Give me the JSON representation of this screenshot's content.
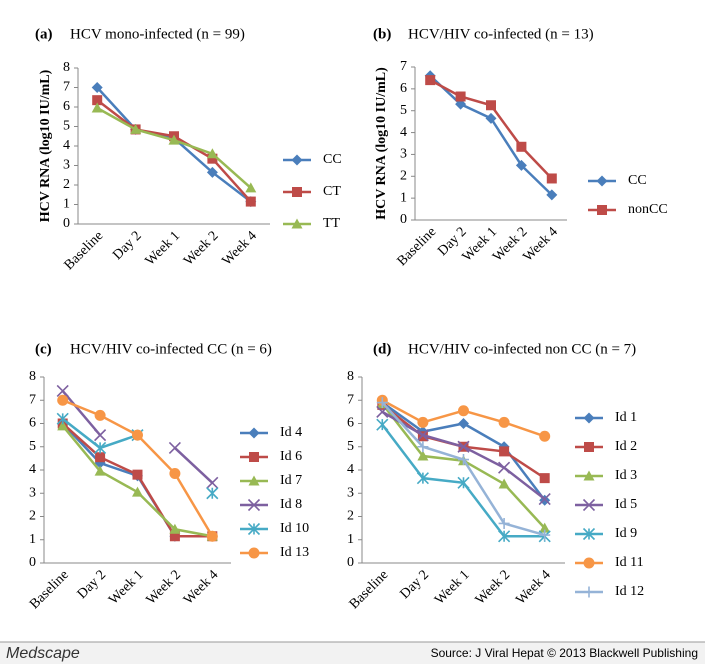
{
  "chart_data": [
    {
      "type": "line",
      "label": "(a)",
      "title": "HCV mono-infected (n = 99)",
      "ylabel": "HCV RNA (log10 IU/mL)",
      "categories": [
        "Baseline",
        "Day 2",
        "Week 1",
        "Week 2",
        "Week 4"
      ],
      "ylim": [
        0,
        8
      ],
      "yticks": [
        0,
        1,
        2,
        3,
        4,
        5,
        6,
        7,
        8
      ],
      "series": [
        {
          "name": "CC",
          "color": "#4a7ebb",
          "marker": "diamond",
          "values": [
            7.0,
            4.85,
            4.4,
            2.65,
            1.15
          ]
        },
        {
          "name": "CT",
          "color": "#be4b48",
          "marker": "square",
          "values": [
            6.35,
            4.85,
            4.5,
            3.35,
            1.15
          ]
        },
        {
          "name": "TT",
          "color": "#98b954",
          "marker": "triangle",
          "values": [
            5.95,
            4.85,
            4.3,
            3.6,
            1.85
          ]
        }
      ]
    },
    {
      "type": "line",
      "label": "(b)",
      "title": "HCV/HIV co-infected (n = 13)",
      "ylabel": "HCV RNA (log10 IU/mL)",
      "categories": [
        "Baseline",
        "Day 2",
        "Week 1",
        "Week 2",
        "Week 4"
      ],
      "ylim": [
        0,
        7
      ],
      "yticks": [
        0,
        1,
        2,
        3,
        4,
        5,
        6,
        7
      ],
      "series": [
        {
          "name": "CC",
          "color": "#4a7ebb",
          "marker": "diamond",
          "values": [
            6.6,
            5.3,
            4.65,
            2.5,
            1.15
          ]
        },
        {
          "name": "nonCC",
          "color": "#be4b48",
          "marker": "square",
          "values": [
            6.4,
            5.65,
            5.25,
            3.35,
            1.9
          ]
        }
      ]
    },
    {
      "type": "line",
      "label": "(c)",
      "title": "HCV/HIV co-infected CC (n = 6)",
      "categories": [
        "Baseline",
        "Day 2",
        "Week 1",
        "Week 2",
        "Week 4"
      ],
      "ylim": [
        0,
        8
      ],
      "yticks": [
        0,
        1,
        2,
        3,
        4,
        5,
        6,
        7,
        8
      ],
      "series": [
        {
          "name": "Id 4",
          "color": "#4a7ebb",
          "marker": "diamond",
          "values": [
            6.0,
            4.3,
            3.75,
            1.15,
            1.15
          ]
        },
        {
          "name": "Id 6",
          "color": "#be4b48",
          "marker": "square",
          "values": [
            6.0,
            4.55,
            3.8,
            1.15,
            1.15
          ]
        },
        {
          "name": "Id 7",
          "color": "#98b954",
          "marker": "triangle",
          "values": [
            5.9,
            3.95,
            3.05,
            1.45,
            1.15
          ]
        },
        {
          "name": "Id 8",
          "color": "#7d60a0",
          "marker": "x",
          "values": [
            7.4,
            5.5,
            null,
            4.95,
            3.45
          ]
        },
        {
          "name": "Id 10",
          "color": "#46aac5",
          "marker": "star",
          "values": [
            6.2,
            4.95,
            5.5,
            null,
            3.0
          ]
        },
        {
          "name": "Id 13",
          "color": "#f79646",
          "marker": "circle",
          "values": [
            7.0,
            6.35,
            5.5,
            3.85,
            1.15
          ]
        }
      ]
    },
    {
      "type": "line",
      "label": "(d)",
      "title": "HCV/HIV co-infected non CC (n = 7)",
      "categories": [
        "Baseline",
        "Day 2",
        "Week 1",
        "Week 2",
        "Week 4"
      ],
      "ylim": [
        0,
        8
      ],
      "yticks": [
        0,
        1,
        2,
        3,
        4,
        5,
        6,
        7,
        8
      ],
      "series": [
        {
          "name": "Id 1",
          "color": "#4a7ebb",
          "marker": "diamond",
          "values": [
            6.9,
            5.65,
            6.0,
            5.0,
            2.7
          ]
        },
        {
          "name": "Id 2",
          "color": "#be4b48",
          "marker": "square",
          "values": [
            6.8,
            5.45,
            5.0,
            4.8,
            3.65
          ]
        },
        {
          "name": "Id 3",
          "color": "#98b954",
          "marker": "triangle",
          "values": [
            6.85,
            4.6,
            4.4,
            3.4,
            1.5
          ]
        },
        {
          "name": "Id 5",
          "color": "#7d60a0",
          "marker": "x",
          "values": [
            6.5,
            5.5,
            5.0,
            4.1,
            2.75
          ]
        },
        {
          "name": "Id 9",
          "color": "#46aac5",
          "marker": "star",
          "values": [
            5.95,
            3.65,
            3.45,
            1.15,
            1.15
          ]
        },
        {
          "name": "Id 11",
          "color": "#f79646",
          "marker": "circle",
          "values": [
            7.0,
            6.05,
            6.55,
            6.05,
            5.45
          ]
        },
        {
          "name": "Id 12",
          "color": "#95b3d7",
          "marker": "plus",
          "values": [
            6.9,
            5.0,
            4.45,
            1.7,
            1.2
          ]
        }
      ]
    }
  ],
  "footer": {
    "logo": "Medscape",
    "source": "Source: J Viral Hepat © 2013 Blackwell Publishing"
  }
}
